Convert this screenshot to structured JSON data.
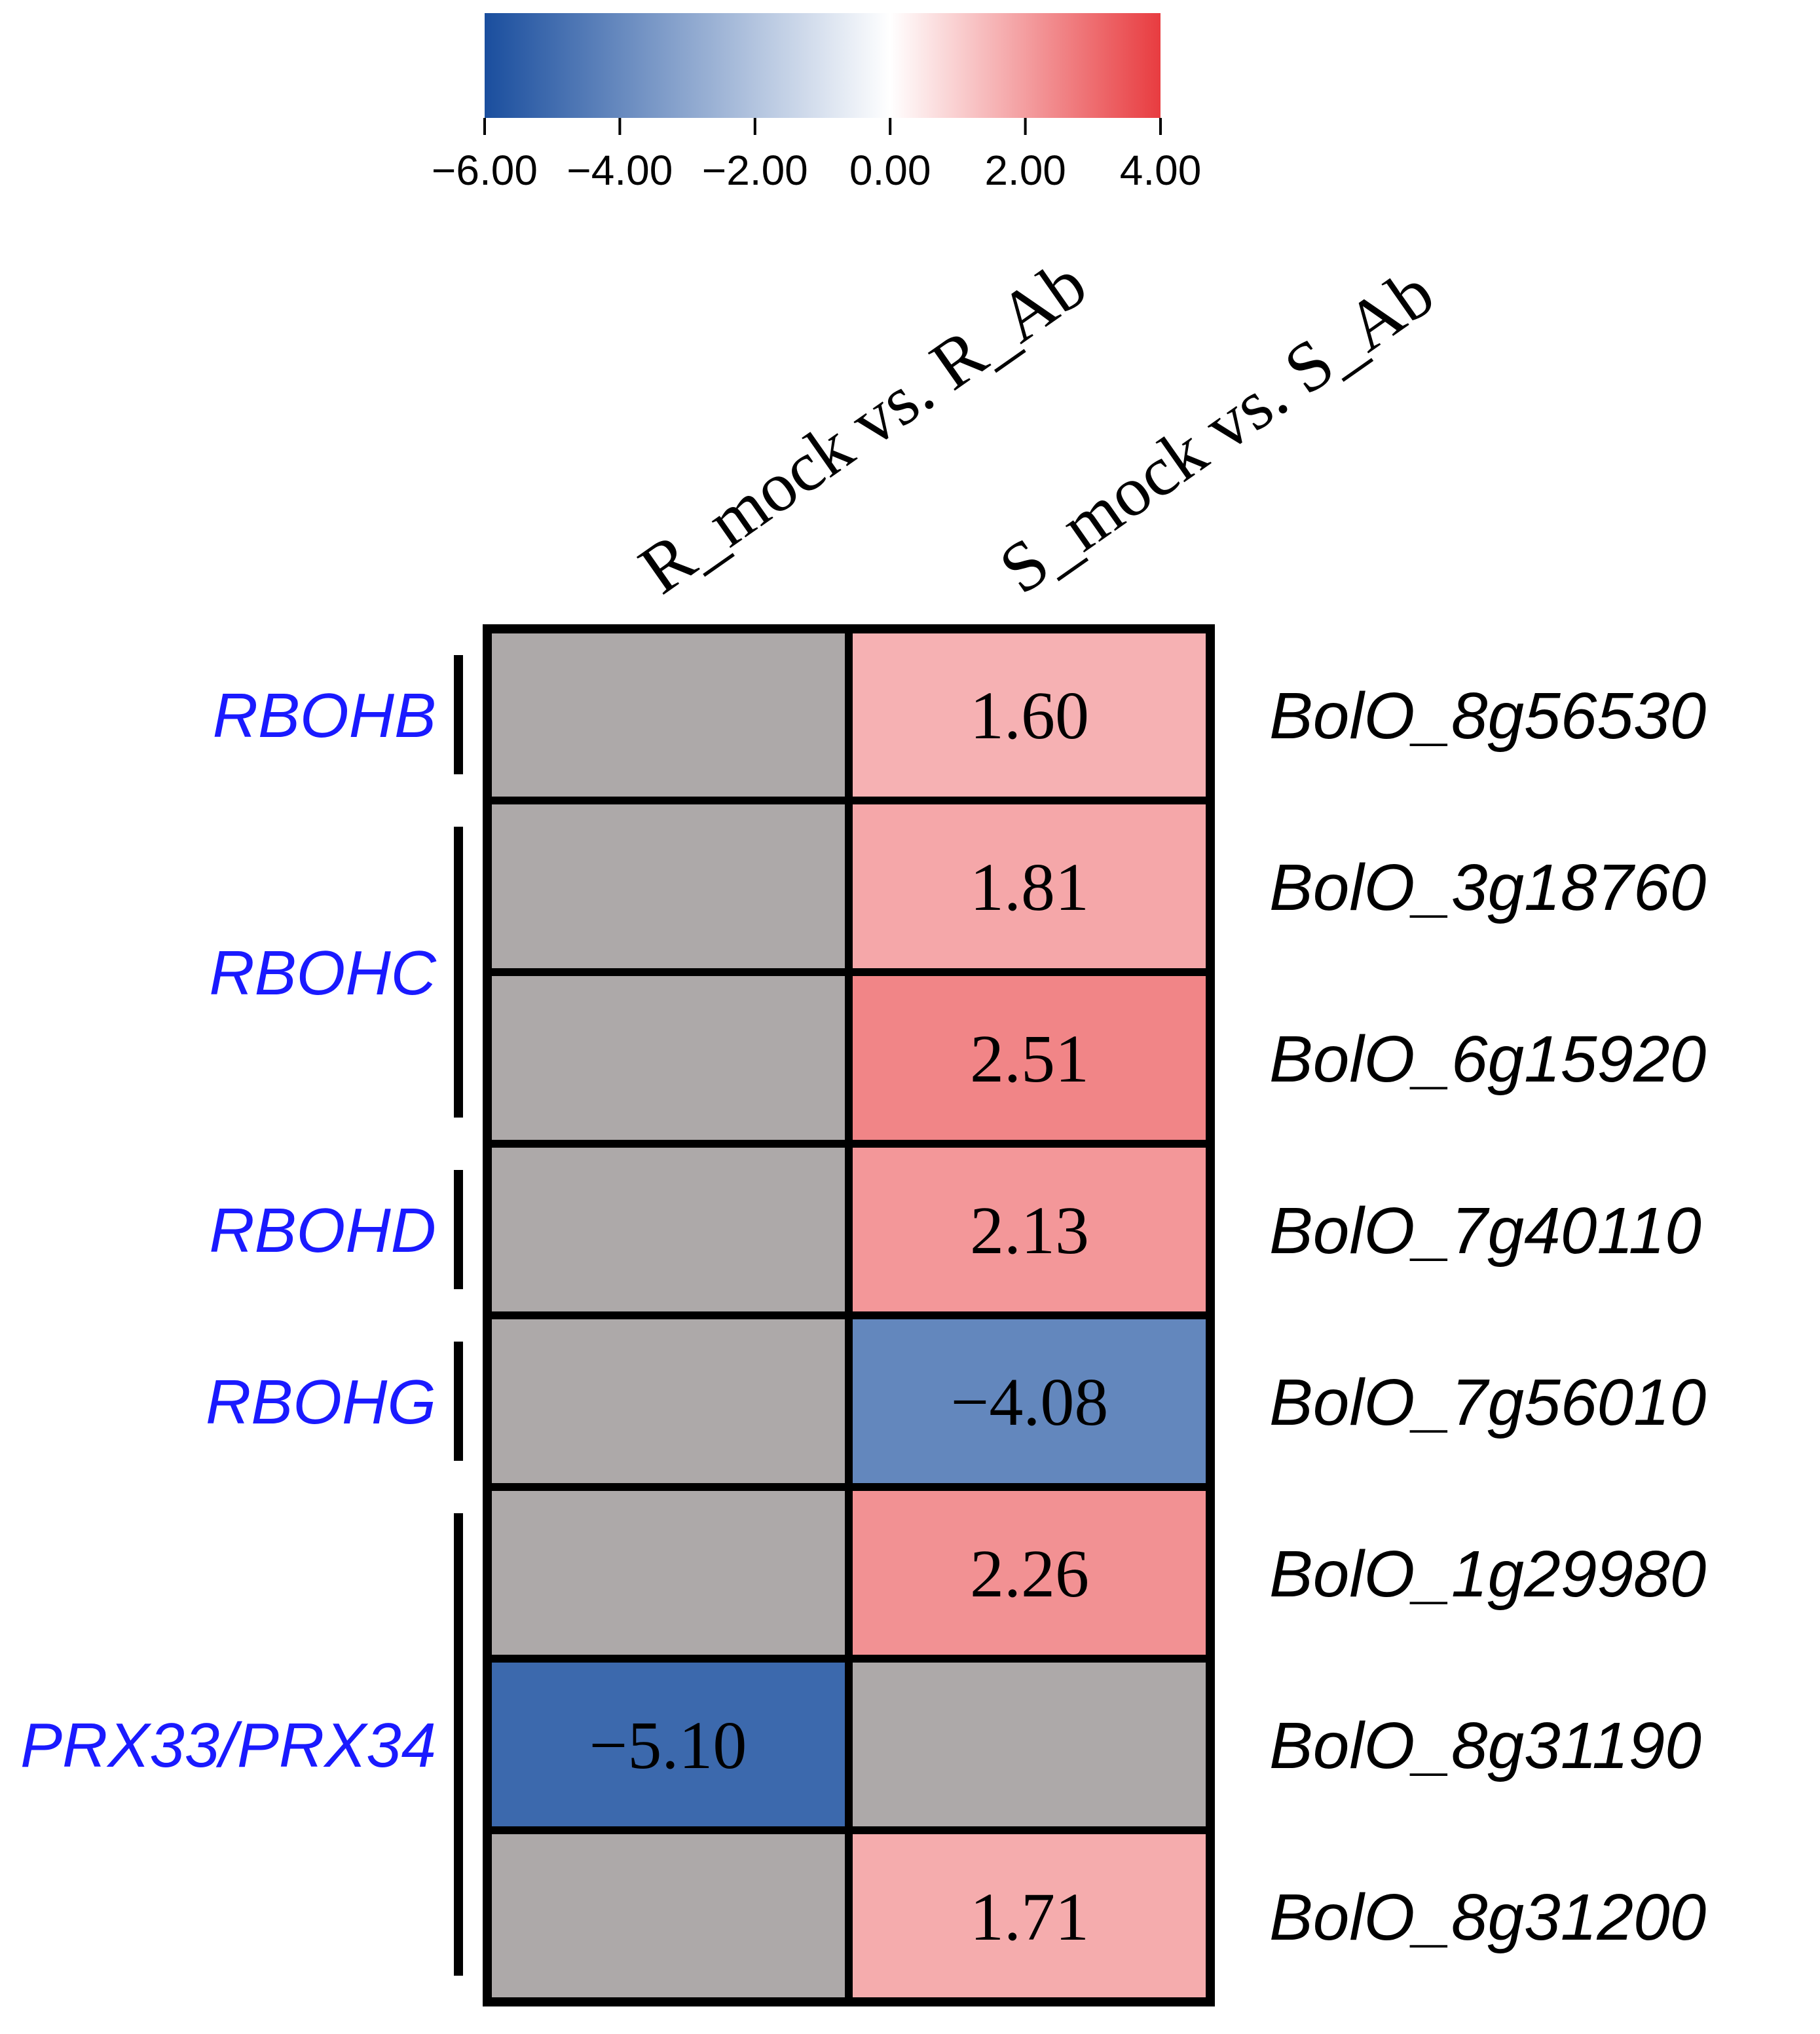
{
  "chart_data": {
    "type": "heatmap",
    "title": "",
    "columns": [
      "R_mock vs. R_Ab",
      "S_mock vs. S_Ab"
    ],
    "rows": [
      {
        "gene": "BolO_8g56530",
        "values": [
          null,
          1.6
        ],
        "labels": [
          "",
          "1.60"
        ]
      },
      {
        "gene": "BolO_3g18760",
        "values": [
          null,
          1.81
        ],
        "labels": [
          "",
          "1.81"
        ]
      },
      {
        "gene": "BolO_6g15920",
        "values": [
          null,
          2.51
        ],
        "labels": [
          "",
          "2.51"
        ]
      },
      {
        "gene": "BolO_7g40110",
        "values": [
          null,
          2.13
        ],
        "labels": [
          "",
          "2.13"
        ]
      },
      {
        "gene": "BolO_7g56010",
        "values": [
          null,
          -4.08
        ],
        "labels": [
          "",
          "−4.08"
        ]
      },
      {
        "gene": "BolO_1g29980",
        "values": [
          null,
          2.26
        ],
        "labels": [
          "",
          "2.26"
        ]
      },
      {
        "gene": "BolO_8g31190",
        "values": [
          -5.1,
          null
        ],
        "labels": [
          "−5.10",
          ""
        ]
      },
      {
        "gene": "BolO_8g31200",
        "values": [
          null,
          1.71
        ],
        "labels": [
          "",
          "1.71"
        ]
      }
    ],
    "groups": [
      {
        "name": "RBOHB",
        "first_row": 0,
        "last_row": 0
      },
      {
        "name": "RBOHC",
        "first_row": 1,
        "last_row": 2
      },
      {
        "name": "RBOHD",
        "first_row": 3,
        "last_row": 3
      },
      {
        "name": "RBOHG",
        "first_row": 4,
        "last_row": 4
      },
      {
        "name": "PRX33/PRX34",
        "first_row": 5,
        "last_row": 7
      }
    ],
    "colorbar": {
      "min": -6.0,
      "max": 4.0,
      "ticks": [
        -6.0,
        -4.0,
        -2.0,
        0.0,
        2.0,
        4.0
      ],
      "tick_labels": [
        "−6.00",
        "−4.00",
        "−2.00",
        "0.00",
        "2.00",
        "4.00"
      ],
      "low_color": "#1a4e9e",
      "mid_color": "#ffffff",
      "high_color": "#e83c40"
    },
    "na_color": "#ada9a9",
    "group_label_color": "#1a1aff"
  }
}
